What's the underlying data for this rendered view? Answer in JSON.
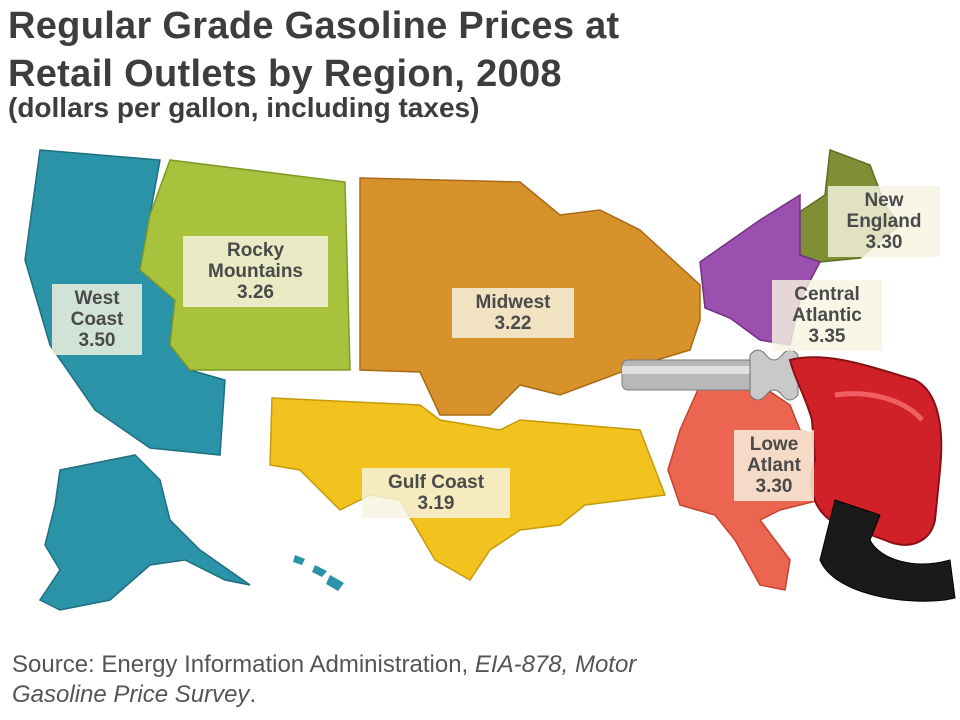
{
  "title_line1": "Regular Grade Gasoline Prices at",
  "title_line2": "Retail Outlets by Region, 2008",
  "subtitle": "(dollars per gallon, including taxes)",
  "regions": [
    {
      "name_line1": "West",
      "name_line2": "Coast",
      "price": "3.50",
      "color": "#2a93a8"
    },
    {
      "name_line1": "Rocky",
      "name_line2": "Mountains",
      "price": "3.26",
      "color": "#a9c23d"
    },
    {
      "name_line1": "Midwest",
      "name_line2": "",
      "price": "3.22",
      "color": "#d7922c"
    },
    {
      "name_line1": "Gulf Coast",
      "name_line2": "",
      "price": "3.19",
      "color": "#f2c21e"
    },
    {
      "name_line1": "New",
      "name_line2": "England",
      "price": "3.30",
      "color": "#7f8f35"
    },
    {
      "name_line1": "Central",
      "name_line2": "Atlantic",
      "price": "3.35",
      "color": "#9b4fae"
    },
    {
      "name_line1": "Lowe",
      "name_line2": "Atlant",
      "price": "3.30",
      "color": "#ec6550"
    }
  ],
  "source_line1_prefix": "Source: Energy Information Administration, ",
  "source_line1_italic": "EIA-878, Motor",
  "source_line2_italic": "Gasoline Price Survey",
  "source_line2_suffix": "."
}
